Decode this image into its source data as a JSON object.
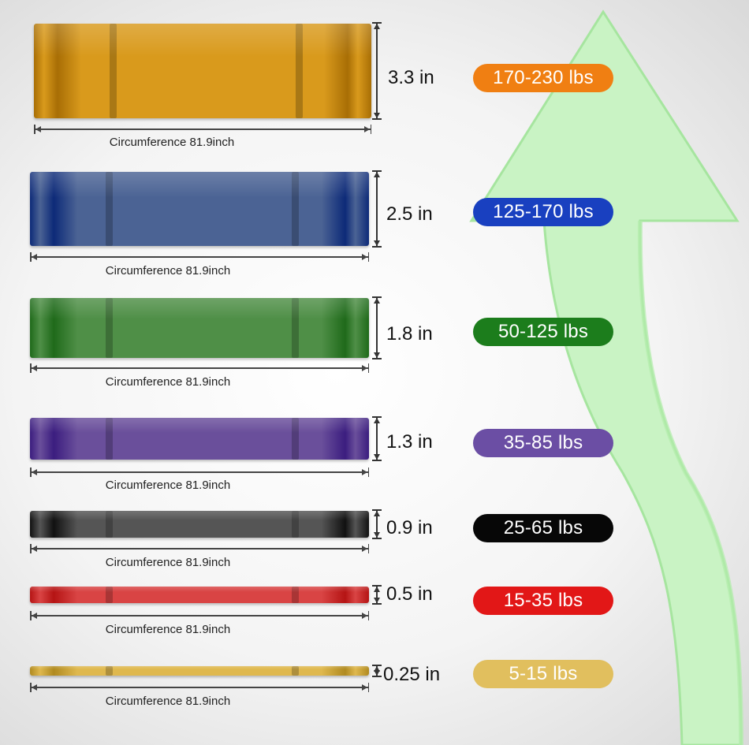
{
  "colors": {
    "arrow_fill": "#c9f3c4",
    "arrow_edge": "#a6e59f"
  },
  "bands": [
    {
      "thickness": "3.3 in",
      "resistance": "170-230 lbs",
      "circumference": "Circumference 81.9inch",
      "band_color": "#d99a1c",
      "band_dark": "#a86e05",
      "pill_color": "#f07f12"
    },
    {
      "thickness": "2.5 in",
      "resistance": "125-170 lbs",
      "circumference": "Circumference 81.9inch",
      "band_color": "#4b6394",
      "band_dark": "#0d2a78",
      "pill_color": "#1940c0"
    },
    {
      "thickness": "1.8 in",
      "resistance": "50-125 lbs",
      "circumference": "Circumference 81.9inch",
      "band_color": "#4f8f47",
      "band_dark": "#1f6a1a",
      "pill_color": "#1c7d1c"
    },
    {
      "thickness": "1.3 in",
      "resistance": "35-85 lbs",
      "circumference": "Circumference 81.9inch",
      "band_color": "#6a4f9b",
      "band_dark": "#3b1d7f",
      "pill_color": "#6b4ea4"
    },
    {
      "thickness": "0.9 in",
      "resistance": "25-65 lbs",
      "circumference": "Circumference 81.9inch",
      "band_color": "#555555",
      "band_dark": "#111111",
      "pill_color": "#070707"
    },
    {
      "thickness": "0.5 in",
      "resistance": "15-35 lbs",
      "circumference": "Circumference 81.9inch",
      "band_color": "#d94444",
      "band_dark": "#b51414",
      "pill_color": "#e21717"
    },
    {
      "thickness": "0.25 in",
      "resistance": "5-15 lbs",
      "circumference": "Circumference 81.9inch",
      "band_color": "#dfb84e",
      "band_dark": "#b08a20",
      "pill_color": "#e1bf5e"
    }
  ]
}
